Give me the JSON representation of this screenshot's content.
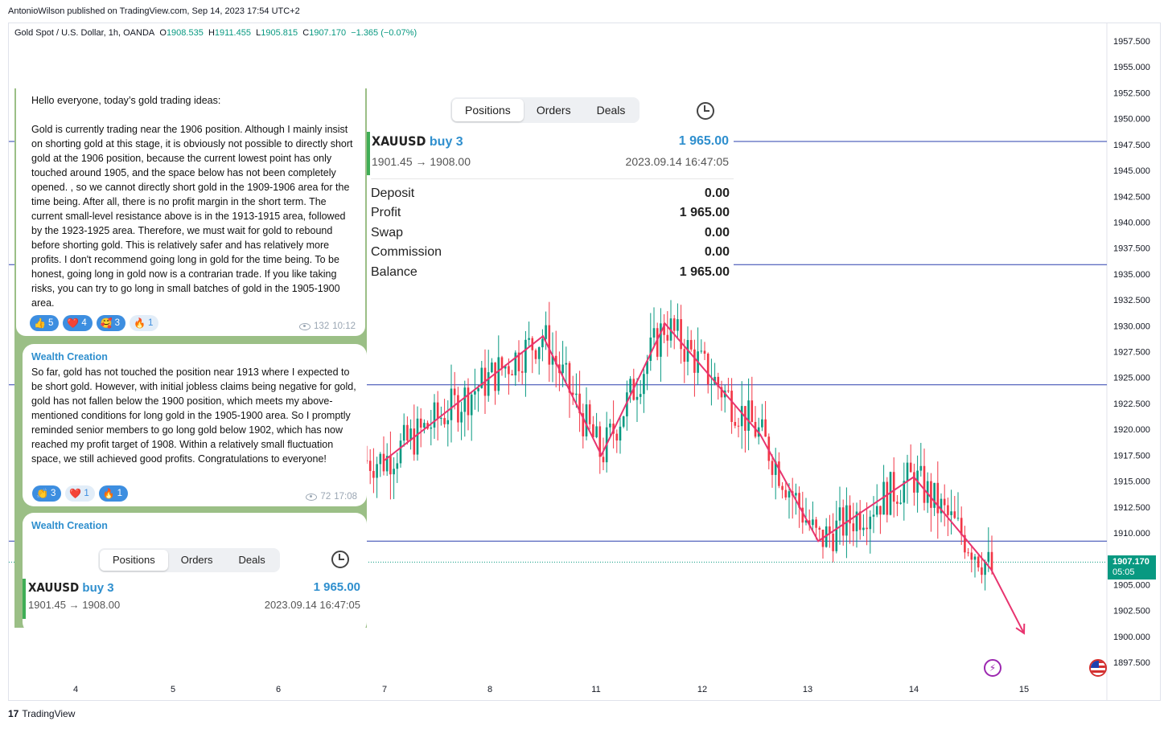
{
  "header": {
    "attribution": "AntonioWilson published on TradingView.com, Sep 14, 2023 17:54 UTC+2"
  },
  "symbol_bar": {
    "name": "Gold Spot / U.S. Dollar, 1h, OANDA",
    "o_label": "O",
    "o": "1908.535",
    "h_label": "H",
    "h": "1911.455",
    "l_label": "L",
    "l": "1905.815",
    "c_label": "C",
    "c": "1907.170",
    "change": "−1.365 (−0.07%)"
  },
  "price_tag": {
    "price": "1907.170",
    "countdown": "05:05"
  },
  "footer": {
    "logo_text": "TradingView"
  },
  "colors": {
    "up": "#089981",
    "down": "#f23645",
    "hline": "#2a3fae",
    "pattern": "#e8346f"
  },
  "chart_data": {
    "type": "candlestick",
    "y_axis_labels": [
      "1957.500",
      "1955.000",
      "1952.500",
      "1950.000",
      "1947.500",
      "1945.000",
      "1942.500",
      "1940.000",
      "1937.500",
      "1935.000",
      "1932.500",
      "1930.000",
      "1927.500",
      "1925.000",
      "1922.500",
      "1920.000",
      "1917.500",
      "1915.000",
      "1912.500",
      "1910.000",
      "1905.000",
      "1902.500",
      "1900.000",
      "1897.500"
    ],
    "ylim": [
      1896.5,
      1959
    ],
    "x_axis_labels": [
      "4",
      "5",
      "6",
      "7",
      "8",
      "11",
      "12",
      "13",
      "14",
      "15"
    ],
    "horizontal_lines": [
      1947.8,
      1935.9,
      1924.3,
      1909.2
    ],
    "current_price": 1907.17,
    "zigzag": [
      {
        "x": "7",
        "y": 1917
      },
      {
        "x": "8.5",
        "y": 1929
      },
      {
        "x": "11.05",
        "y": 1917.5
      },
      {
        "x": "11.65",
        "y": 1930.2
      },
      {
        "x": "12.55",
        "y": 1919.5
      },
      {
        "x": "13.1",
        "y": 1909.2
      },
      {
        "x": "14.0",
        "y": 1915.4
      },
      {
        "x": "14.7",
        "y": 1906.5
      },
      {
        "x": "15.2",
        "y": 1900.3
      }
    ]
  },
  "telegram": {
    "message1": {
      "text": "Hello everyone, today’s gold trading ideas:\n\nGold is currently trading near the 1906 position. Although I mainly insist on shorting gold at this stage, it is obviously not possible to directly short gold at the 1906 position, because the current lowest point has only touched around 1905, and the space below has not been completely opened. , so we cannot directly short gold in the 1909-1906 area for the time being. After all, there is no profit margin in the short term. The current small-level resistance above is in the 1913-1915 area, followed by the 1923-1925 area. Therefore, we must wait for gold to rebound before shorting gold. This is relatively safer and has relatively more profits. I don't recommend going long in gold for the time being. To be honest, going long in gold now is a contrarian trade. If you like taking risks, you can try to go long in small batches of gold in the 1905-1900 area.",
      "reactions": [
        {
          "emoji": "👍",
          "count": "5"
        },
        {
          "emoji": "❤️",
          "count": "4"
        },
        {
          "emoji": "🥰",
          "count": "3"
        },
        {
          "emoji": "🔥",
          "count": "1"
        }
      ],
      "views": "132",
      "time": "10:12"
    },
    "message2": {
      "sender": "Wealth Creation",
      "text": "So far, gold has not touched the position near 1913 where I expected to be short gold. However, with initial jobless claims being negative for gold, gold has not fallen below the 1900 position, which meets my above-mentioned conditions for long gold in the 1905-1900 area. So I promptly reminded senior members to go long gold below 1902, which has now reached my profit target of 1908. Within a relatively small fluctuation space, we still achieved good profits. Congratulations to everyone!",
      "reactions": [
        {
          "emoji": "👏",
          "count": "3"
        },
        {
          "emoji": "❤️",
          "count": "1"
        },
        {
          "emoji": "🔥",
          "count": "1"
        }
      ],
      "views": "72",
      "time": "17:08"
    },
    "message3": {
      "sender": "Wealth Creation"
    }
  },
  "trade_widget": {
    "tabs": [
      "Positions",
      "Orders",
      "Deals"
    ],
    "symbol": "XAUUSD",
    "side": "buy 3",
    "pl": "1 965.00",
    "range": "1901.45 → 1908.00",
    "date": "2023.09.14 16:47:05",
    "summary": [
      {
        "label": "Deposit",
        "value": "0.00"
      },
      {
        "label": "Profit",
        "value": "1 965.00"
      },
      {
        "label": "Swap",
        "value": "0.00"
      },
      {
        "label": "Commission",
        "value": "0.00"
      },
      {
        "label": "Balance",
        "value": "1 965.00"
      }
    ]
  }
}
